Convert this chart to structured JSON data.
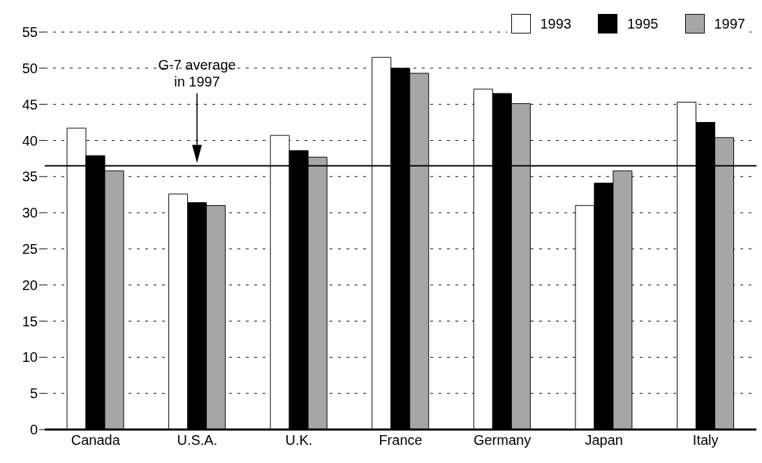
{
  "chart_data": {
    "type": "bar",
    "categories": [
      "Canada",
      "U.S.A.",
      "U.K.",
      "France",
      "Germany",
      "Japan",
      "Italy"
    ],
    "series": [
      {
        "name": "1993",
        "color": "#ffffff",
        "values": [
          41.7,
          32.6,
          40.7,
          51.5,
          47.1,
          31.0,
          45.3
        ]
      },
      {
        "name": "1995",
        "color": "#000000",
        "values": [
          37.9,
          31.4,
          38.6,
          50.0,
          46.5,
          34.1,
          42.5
        ]
      },
      {
        "name": "1997",
        "color": "#a6a6a6",
        "values": [
          35.8,
          31.0,
          37.7,
          49.3,
          45.1,
          35.8,
          40.4
        ]
      }
    ],
    "ylim": [
      0,
      55
    ],
    "yticks": [
      0,
      5,
      10,
      15,
      20,
      25,
      30,
      35,
      40,
      45,
      50,
      55
    ],
    "grid": "y",
    "legend": "top right",
    "ref_lines": [
      {
        "axis": "y",
        "value": 36.5,
        "color": "#000000"
      }
    ],
    "annotations": [
      "G-7 average in 1997"
    ]
  }
}
